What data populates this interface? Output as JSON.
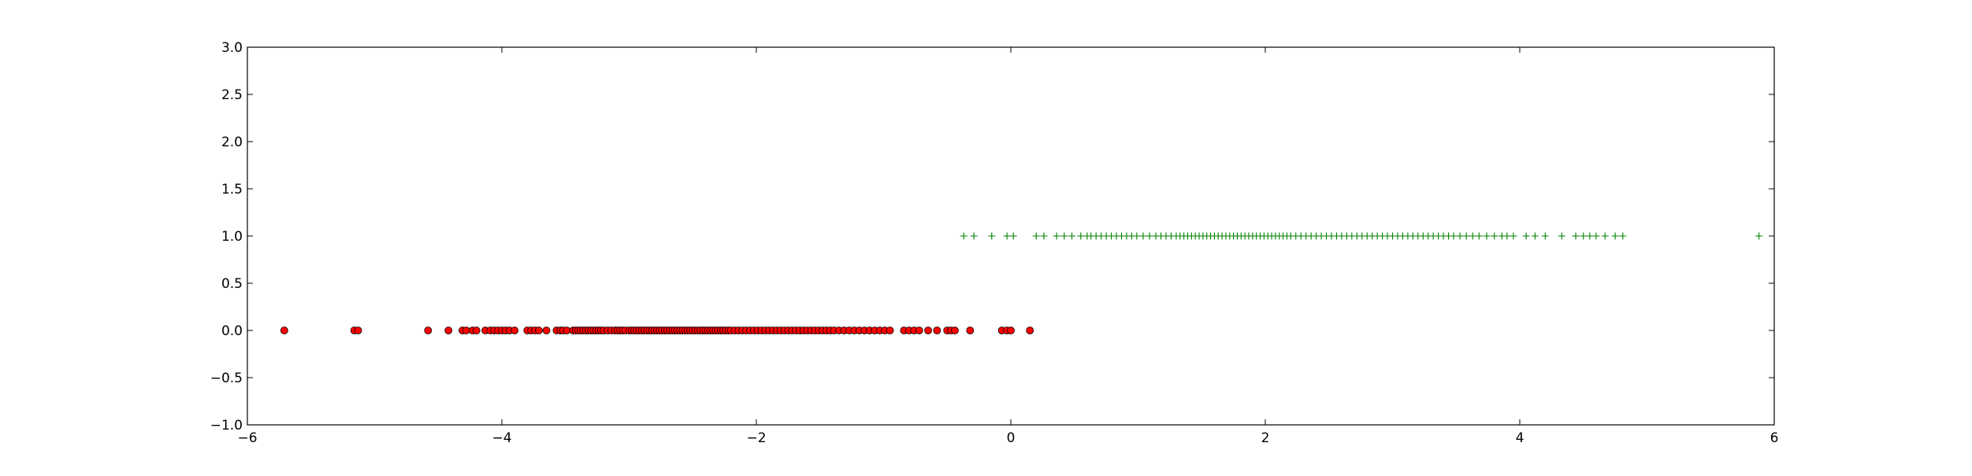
{
  "chart_data": {
    "type": "scatter",
    "title": "",
    "xlabel": "",
    "ylabel": "",
    "xlim": [
      -6,
      6
    ],
    "ylim": [
      -1.0,
      3.0
    ],
    "grid": false,
    "legend": "none",
    "x_ticks": [
      -6,
      -4,
      -2,
      0,
      2,
      4,
      6
    ],
    "x_tick_labels": [
      "−6",
      "−4",
      "−2",
      "0",
      "2",
      "4",
      "6"
    ],
    "y_ticks": [
      -1.0,
      -0.5,
      0.0,
      0.5,
      1.0,
      1.5,
      2.0,
      2.5,
      3.0
    ],
    "y_tick_labels": [
      "−1.0",
      "−0.5",
      "0.0",
      "0.5",
      "1.0",
      "1.5",
      "2.0",
      "2.5",
      "3.0"
    ],
    "series": [
      {
        "marker": "circle",
        "color": "#ff0000",
        "edge_color": "#000000",
        "y": 0,
        "x": [
          -5.71,
          -5.16,
          -5.13,
          -4.58,
          -4.42,
          -4.31,
          -4.28,
          -4.23,
          -4.2,
          -4.13,
          -4.09,
          -4.06,
          -4.03,
          -4.0,
          -3.97,
          -3.94,
          -3.9,
          -3.8,
          -3.77,
          -3.74,
          -3.71,
          -3.65,
          -3.57,
          -3.54,
          -3.52,
          -3.49,
          -3.44,
          -3.42,
          -3.4,
          -3.38,
          -3.36,
          -3.34,
          -3.32,
          -3.3,
          -3.28,
          -3.26,
          -3.24,
          -3.22,
          -3.2,
          -3.17,
          -3.14,
          -3.11,
          -3.09,
          -3.07,
          -3.05,
          -3.03,
          -3.0,
          -2.98,
          -2.96,
          -2.94,
          -2.92,
          -2.9,
          -2.88,
          -2.86,
          -2.84,
          -2.82,
          -2.8,
          -2.78,
          -2.76,
          -2.74,
          -2.72,
          -2.7,
          -2.68,
          -2.66,
          -2.64,
          -2.62,
          -2.6,
          -2.58,
          -2.56,
          -2.54,
          -2.52,
          -2.5,
          -2.48,
          -2.46,
          -2.44,
          -2.42,
          -2.4,
          -2.38,
          -2.36,
          -2.34,
          -2.32,
          -2.3,
          -2.28,
          -2.26,
          -2.24,
          -2.22,
          -2.2,
          -2.17,
          -2.14,
          -2.11,
          -2.08,
          -2.05,
          -2.02,
          -1.99,
          -1.96,
          -1.93,
          -1.9,
          -1.87,
          -1.84,
          -1.81,
          -1.78,
          -1.75,
          -1.72,
          -1.69,
          -1.66,
          -1.63,
          -1.6,
          -1.57,
          -1.54,
          -1.51,
          -1.48,
          -1.45,
          -1.42,
          -1.39,
          -1.35,
          -1.31,
          -1.27,
          -1.23,
          -1.19,
          -1.15,
          -1.11,
          -1.07,
          -1.03,
          -0.99,
          -0.95,
          -0.84,
          -0.8,
          -0.76,
          -0.72,
          -0.65,
          -0.58,
          -0.5,
          -0.47,
          -0.44,
          -0.32,
          -0.07,
          -0.03,
          0.0,
          0.15
        ]
      },
      {
        "marker": "plus",
        "color": "#008000",
        "y": 1,
        "x": [
          -0.37,
          -0.29,
          -0.15,
          -0.03,
          0.02,
          0.2,
          0.26,
          0.36,
          0.42,
          0.48,
          0.55,
          0.6,
          0.63,
          0.67,
          0.71,
          0.75,
          0.79,
          0.83,
          0.87,
          0.91,
          0.95,
          0.99,
          1.04,
          1.09,
          1.14,
          1.18,
          1.22,
          1.26,
          1.3,
          1.33,
          1.36,
          1.39,
          1.42,
          1.45,
          1.48,
          1.51,
          1.54,
          1.57,
          1.6,
          1.63,
          1.66,
          1.69,
          1.72,
          1.75,
          1.78,
          1.81,
          1.84,
          1.87,
          1.9,
          1.93,
          1.96,
          1.99,
          2.02,
          2.05,
          2.08,
          2.11,
          2.14,
          2.17,
          2.2,
          2.24,
          2.28,
          2.32,
          2.36,
          2.4,
          2.44,
          2.48,
          2.52,
          2.56,
          2.6,
          2.64,
          2.68,
          2.72,
          2.76,
          2.8,
          2.84,
          2.88,
          2.92,
          2.96,
          3.0,
          3.04,
          3.08,
          3.12,
          3.16,
          3.2,
          3.24,
          3.28,
          3.32,
          3.36,
          3.4,
          3.44,
          3.48,
          3.53,
          3.58,
          3.63,
          3.68,
          3.74,
          3.8,
          3.86,
          3.9,
          3.95,
          4.05,
          4.12,
          4.2,
          4.33,
          4.44,
          4.5,
          4.55,
          4.6,
          4.67,
          4.75,
          4.81,
          5.88
        ]
      }
    ]
  }
}
